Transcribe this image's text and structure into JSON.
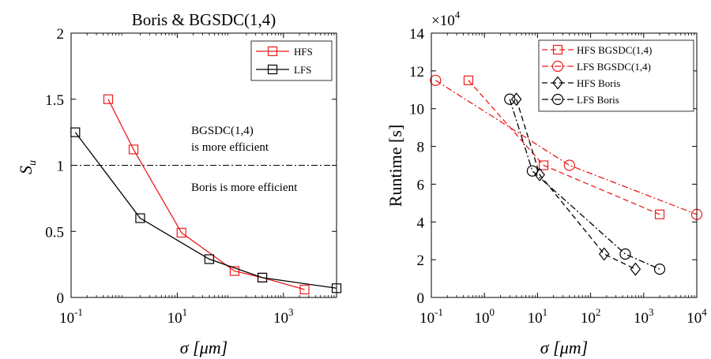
{
  "colors": {
    "hfs": "#ee1c1c",
    "lfs": "#000000"
  },
  "chart_data": [
    {
      "type": "line",
      "title": "Boris & BGSDC(1,4)",
      "xlabel": "σ [μm]",
      "ylabel": "S",
      "ylabel_sub": "u",
      "xscale": "log",
      "xlim": [
        0.1,
        10000
      ],
      "ylim": [
        0,
        2
      ],
      "xticks": [
        {
          "value": 0.1,
          "base": "10",
          "exp": "-1"
        },
        {
          "value": 10,
          "base": "10",
          "exp": "1"
        },
        {
          "value": 1000,
          "base": "10",
          "exp": "3"
        }
      ],
      "yticks": [
        {
          "value": 0,
          "label": "0"
        },
        {
          "value": 0.5,
          "label": "0.5"
        },
        {
          "value": 1,
          "label": "1"
        },
        {
          "value": 1.5,
          "label": "1.5"
        },
        {
          "value": 2,
          "label": "2"
        }
      ],
      "reference_line": {
        "y": 1,
        "style": "dash-dot"
      },
      "annotations": {
        "upper": [
          "BGSDC(1,4)",
          "is more efficient"
        ],
        "lower": "Boris is more efficient"
      },
      "legend_position": "top-right",
      "series": [
        {
          "name": "HFS",
          "color": "#ee1c1c",
          "marker": "square",
          "dash": "solid",
          "x": [
            0.5,
            1.5,
            12,
            120,
            400,
            2500
          ],
          "y": [
            1.5,
            1.12,
            0.49,
            0.2,
            0.15,
            0.06
          ]
        },
        {
          "name": "LFS",
          "color": "#000000",
          "marker": "square",
          "dash": "solid",
          "x": [
            0.12,
            2.0,
            40,
            400,
            10000
          ],
          "y": [
            1.25,
            0.6,
            0.29,
            0.15,
            0.07
          ]
        }
      ]
    },
    {
      "type": "line",
      "title": "",
      "xlabel": "σ [μm]",
      "ylabel": "Runtime [s]",
      "xscale": "log",
      "xlim": [
        0.1,
        10000
      ],
      "ylim": [
        0,
        140000
      ],
      "y_multiplier": {
        "base": "×10",
        "exp": "4"
      },
      "xticks": [
        {
          "value": 0.1,
          "base": "10",
          "exp": "-1"
        },
        {
          "value": 1,
          "base": "10",
          "exp": "0"
        },
        {
          "value": 10,
          "base": "10",
          "exp": "1"
        },
        {
          "value": 100,
          "base": "10",
          "exp": "2"
        },
        {
          "value": 1000,
          "base": "10",
          "exp": "3"
        },
        {
          "value": 10000,
          "base": "10",
          "exp": "4"
        }
      ],
      "yticks": [
        {
          "value": 0,
          "label": "0"
        },
        {
          "value": 20000,
          "label": "2"
        },
        {
          "value": 40000,
          "label": "4"
        },
        {
          "value": 60000,
          "label": "6"
        },
        {
          "value": 80000,
          "label": "8"
        },
        {
          "value": 100000,
          "label": "10"
        },
        {
          "value": 120000,
          "label": "12"
        },
        {
          "value": 140000,
          "label": "14"
        }
      ],
      "legend_position": "top-right",
      "series": [
        {
          "name": "HFS BGSDC(1,4)",
          "color": "#ee1c1c",
          "marker": "square",
          "dash": "dashed",
          "x": [
            0.5,
            13,
            2000
          ],
          "y": [
            115000,
            70000,
            44000
          ]
        },
        {
          "name": "LFS BGSDC(1,4)",
          "color": "#ee1c1c",
          "marker": "circle",
          "dash": "dashdot",
          "x": [
            0.12,
            40,
            10000
          ],
          "y": [
            115000,
            70000,
            44000
          ]
        },
        {
          "name": "HFS Boris",
          "color": "#000000",
          "marker": "diamond",
          "dash": "dashed",
          "x": [
            4,
            11,
            180,
            700
          ],
          "y": [
            105000,
            65000,
            23000,
            15000
          ]
        },
        {
          "name": "LFS Boris",
          "color": "#000000",
          "marker": "circle",
          "dash": "dashdot",
          "x": [
            3,
            8,
            450,
            2000
          ],
          "y": [
            105000,
            67000,
            23000,
            15000
          ]
        }
      ]
    }
  ]
}
